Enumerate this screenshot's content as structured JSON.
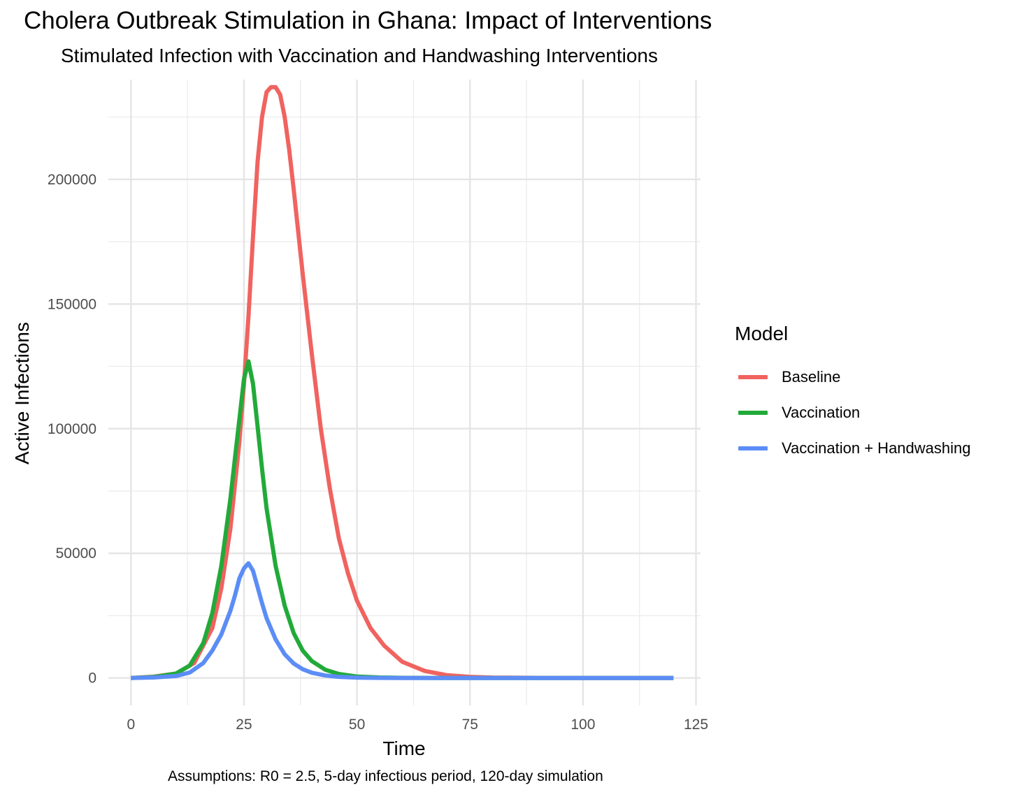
{
  "title": "Cholera Outbreak Stimulation in Ghana: Impact of Interventions",
  "subtitle": "Stimulated Infection with Vaccination and Handwashing Interventions",
  "caption": "Assumptions: R0 = 2.5, 5-day infectious period, 120-day simulation",
  "legend": {
    "title": "Model"
  },
  "chart_data": {
    "type": "line",
    "title": "Cholera Outbreak Stimulation in Ghana: Impact of Interventions",
    "subtitle": "Stimulated Infection with Vaccination and Handwashing Interventions",
    "xlabel": "Time",
    "ylabel": "Active Infections",
    "xlim": [
      -5,
      126
    ],
    "ylim": [
      -11000,
      240000
    ],
    "x_ticks": [
      0,
      25,
      50,
      75,
      100,
      125
    ],
    "y_ticks": [
      0,
      50000,
      100000,
      150000,
      200000
    ],
    "x_tick_labels": [
      "0",
      "25",
      "50",
      "75",
      "100",
      "125"
    ],
    "y_tick_labels": [
      "0",
      "50000",
      "100000",
      "150000",
      "200000"
    ],
    "grid": true,
    "legend_position": "right",
    "series": [
      {
        "name": "Baseline",
        "color": "#F0635F",
        "x": [
          0,
          5,
          10,
          14,
          18,
          20,
          22,
          24,
          25,
          26,
          27,
          28,
          29,
          30,
          31,
          32,
          33,
          34,
          35,
          36,
          38,
          40,
          42,
          44,
          46,
          48,
          50,
          53,
          56,
          60,
          65,
          70,
          75,
          80,
          90,
          100,
          110,
          120
        ],
        "y": [
          0,
          500,
          1800,
          6000,
          20000,
          36000,
          60000,
          95000,
          118000,
          145000,
          177000,
          207000,
          225000,
          235000,
          237000,
          237000,
          234000,
          225000,
          212000,
          196000,
          162000,
          130000,
          100000,
          76000,
          56000,
          42000,
          31000,
          20000,
          13000,
          6500,
          2800,
          1100,
          450,
          170,
          30,
          0,
          0,
          0
        ]
      },
      {
        "name": "Vaccination",
        "color": "#22AA39",
        "x": [
          0,
          5,
          10,
          13,
          16,
          18,
          20,
          22,
          23,
          24,
          25,
          26,
          27,
          28,
          29,
          30,
          32,
          34,
          36,
          38,
          40,
          43,
          46,
          50,
          55,
          60,
          70,
          80,
          90,
          100,
          110,
          120
        ],
        "y": [
          0,
          400,
          1800,
          5000,
          14000,
          26000,
          45000,
          72000,
          88000,
          104000,
          120000,
          127000,
          118000,
          101000,
          84000,
          68000,
          45000,
          29000,
          18000,
          11000,
          6800,
          3300,
          1600,
          600,
          200,
          60,
          0,
          0,
          0,
          0,
          0,
          0
        ]
      },
      {
        "name": "Vaccination + Handwashing",
        "color": "#5C8DF6",
        "x": [
          0,
          5,
          10,
          13,
          16,
          18,
          20,
          22,
          23,
          24,
          25,
          26,
          27,
          28,
          29,
          30,
          32,
          34,
          36,
          38,
          40,
          43,
          46,
          50,
          55,
          60,
          70,
          80,
          90,
          100,
          110,
          120
        ],
        "y": [
          0,
          200,
          800,
          2200,
          6000,
          11000,
          17500,
          27000,
          33000,
          40000,
          44000,
          46000,
          43000,
          36500,
          30000,
          24000,
          15500,
          9500,
          5800,
          3500,
          2100,
          1000,
          450,
          150,
          50,
          0,
          0,
          0,
          0,
          0,
          0,
          0
        ]
      }
    ]
  }
}
